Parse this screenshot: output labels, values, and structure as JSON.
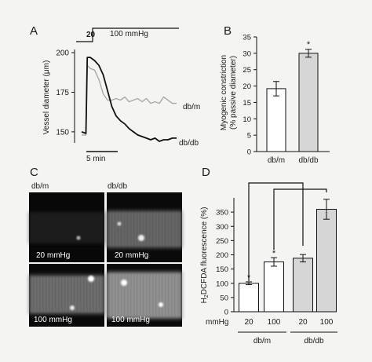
{
  "panels": {
    "a": "A",
    "b": "B",
    "c": "C",
    "d": "D"
  },
  "chart_data": [
    {
      "type": "line",
      "panel": "A",
      "ylabel": "Vessel diameter (μm)",
      "yticks": [
        150,
        175,
        200
      ],
      "ylim": [
        143,
        202
      ],
      "pressure_step": {
        "low_label": "20",
        "high_label": "100 mmHg"
      },
      "scalebar_label": "5 min",
      "series": [
        {
          "name": "db/m",
          "color": "#a9a9a9",
          "x": [
            0,
            1.0,
            1.3,
            2.0,
            3.0,
            4.0,
            5.0,
            6.0,
            7.0,
            8.0,
            9.0,
            10.0,
            11.0,
            12.0,
            13.0,
            14.0,
            15.0,
            16.0,
            17.0,
            18.0,
            19.0,
            20.0,
            21.0,
            22.0
          ],
          "y": [
            148,
            148,
            192,
            190,
            189,
            183,
            174,
            170,
            170,
            171,
            170,
            172,
            169,
            170,
            171,
            169,
            171,
            168,
            169,
            168,
            172,
            170,
            168,
            168
          ]
        },
        {
          "name": "db/db",
          "color": "#111111",
          "x": [
            0,
            1.0,
            1.3,
            2.0,
            3.0,
            4.0,
            5.0,
            6.0,
            7.0,
            8.0,
            9.0,
            10.0,
            11.0,
            12.0,
            13.0,
            14.0,
            15.0,
            16.0,
            17.0,
            18.0,
            19.0,
            20.0,
            21.0,
            22.0
          ],
          "y": [
            150,
            149,
            197,
            197,
            195,
            192,
            186,
            176,
            166,
            160,
            157,
            155,
            152,
            150,
            148,
            147,
            146,
            145,
            146,
            144,
            145,
            145,
            146,
            146
          ]
        }
      ]
    },
    {
      "type": "bar",
      "panel": "B",
      "ylabel": "Myogenic constriction (% passive diameter)",
      "ylim": [
        0,
        35
      ],
      "yticks": [
        0,
        5,
        10,
        15,
        20,
        25,
        30,
        35
      ],
      "categories": [
        "db/m",
        "db/db"
      ],
      "values": [
        19.2,
        30.0
      ],
      "errors": [
        2.2,
        1.2
      ],
      "colors": [
        "#ffffff",
        "#d6d6d6"
      ],
      "significance": [
        "",
        "*"
      ]
    },
    {
      "type": "bar",
      "panel": "D",
      "ylabel": "H2DCFDA fluorescence (%)",
      "ylim": [
        0,
        400
      ],
      "yticks": [
        0,
        50,
        100,
        150,
        200,
        250,
        300,
        350
      ],
      "categories": [
        "20",
        "100",
        "20",
        "100"
      ],
      "values": [
        100,
        175,
        188,
        360
      ],
      "errors": [
        5,
        15,
        13,
        35
      ],
      "colors": [
        "#ffffff",
        "#ffffff",
        "#d6d6d6",
        "#d6d6d6"
      ],
      "significance": [
        "*",
        "*",
        "",
        ""
      ],
      "row_label": "mmHg",
      "groups": [
        "db/m",
        "db/db"
      ]
    }
  ],
  "images": {
    "col_labels": [
      "db/m",
      "db/db"
    ],
    "tiles": [
      {
        "label": "20 mmHg"
      },
      {
        "label": "20 mmHg"
      },
      {
        "label": "100 mmHg"
      },
      {
        "label": "100 mmHg"
      }
    ]
  }
}
